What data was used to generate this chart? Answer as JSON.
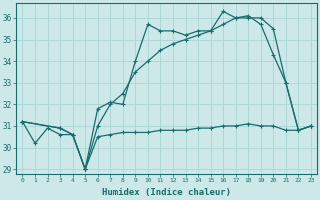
{
  "title": "",
  "xlabel": "Humidex (Indice chaleur)",
  "bg_color": "#cce8e8",
  "grid_color": "#aad4d4",
  "line_color": "#1a6b6b",
  "xlim": [
    -0.5,
    23.5
  ],
  "ylim": [
    28.8,
    36.7
  ],
  "yticks": [
    29,
    30,
    31,
    32,
    33,
    34,
    35,
    36
  ],
  "xticks": [
    0,
    1,
    2,
    3,
    4,
    5,
    6,
    7,
    8,
    9,
    10,
    11,
    12,
    13,
    14,
    15,
    16,
    17,
    18,
    19,
    20,
    21,
    22,
    23
  ],
  "lines": [
    {
      "x": [
        0,
        1,
        2,
        3,
        4,
        5,
        6,
        7,
        8,
        9,
        10,
        11,
        12,
        13,
        14,
        15,
        16,
        17,
        18,
        19,
        20,
        21,
        22,
        23
      ],
      "y": [
        31.2,
        30.2,
        30.9,
        30.6,
        30.6,
        29.0,
        30.5,
        30.6,
        30.7,
        30.7,
        30.7,
        30.8,
        30.8,
        30.8,
        30.9,
        30.9,
        31.0,
        31.0,
        31.1,
        31.0,
        31.0,
        30.8,
        30.8,
        31.0
      ]
    },
    {
      "x": [
        0,
        3,
        4,
        5,
        6,
        7,
        8,
        9,
        10,
        11,
        12,
        13,
        14,
        15,
        16,
        17,
        18,
        19,
        20,
        21,
        22,
        23
      ],
      "y": [
        31.2,
        30.9,
        30.6,
        29.0,
        31.8,
        32.1,
        32.0,
        34.0,
        35.7,
        35.4,
        35.4,
        35.2,
        35.4,
        35.4,
        36.3,
        36.0,
        36.1,
        35.7,
        34.3,
        33.0,
        30.8,
        31.0
      ]
    },
    {
      "x": [
        0,
        3,
        4,
        5,
        6,
        7,
        8,
        9,
        10,
        11,
        12,
        13,
        14,
        15,
        16,
        17,
        18,
        19,
        20,
        21,
        22,
        23
      ],
      "y": [
        31.2,
        30.9,
        30.6,
        29.0,
        31.0,
        32.0,
        32.5,
        33.5,
        34.0,
        34.5,
        34.8,
        35.0,
        35.2,
        35.4,
        35.7,
        36.0,
        36.0,
        36.0,
        35.5,
        33.0,
        30.8,
        31.0
      ]
    }
  ]
}
